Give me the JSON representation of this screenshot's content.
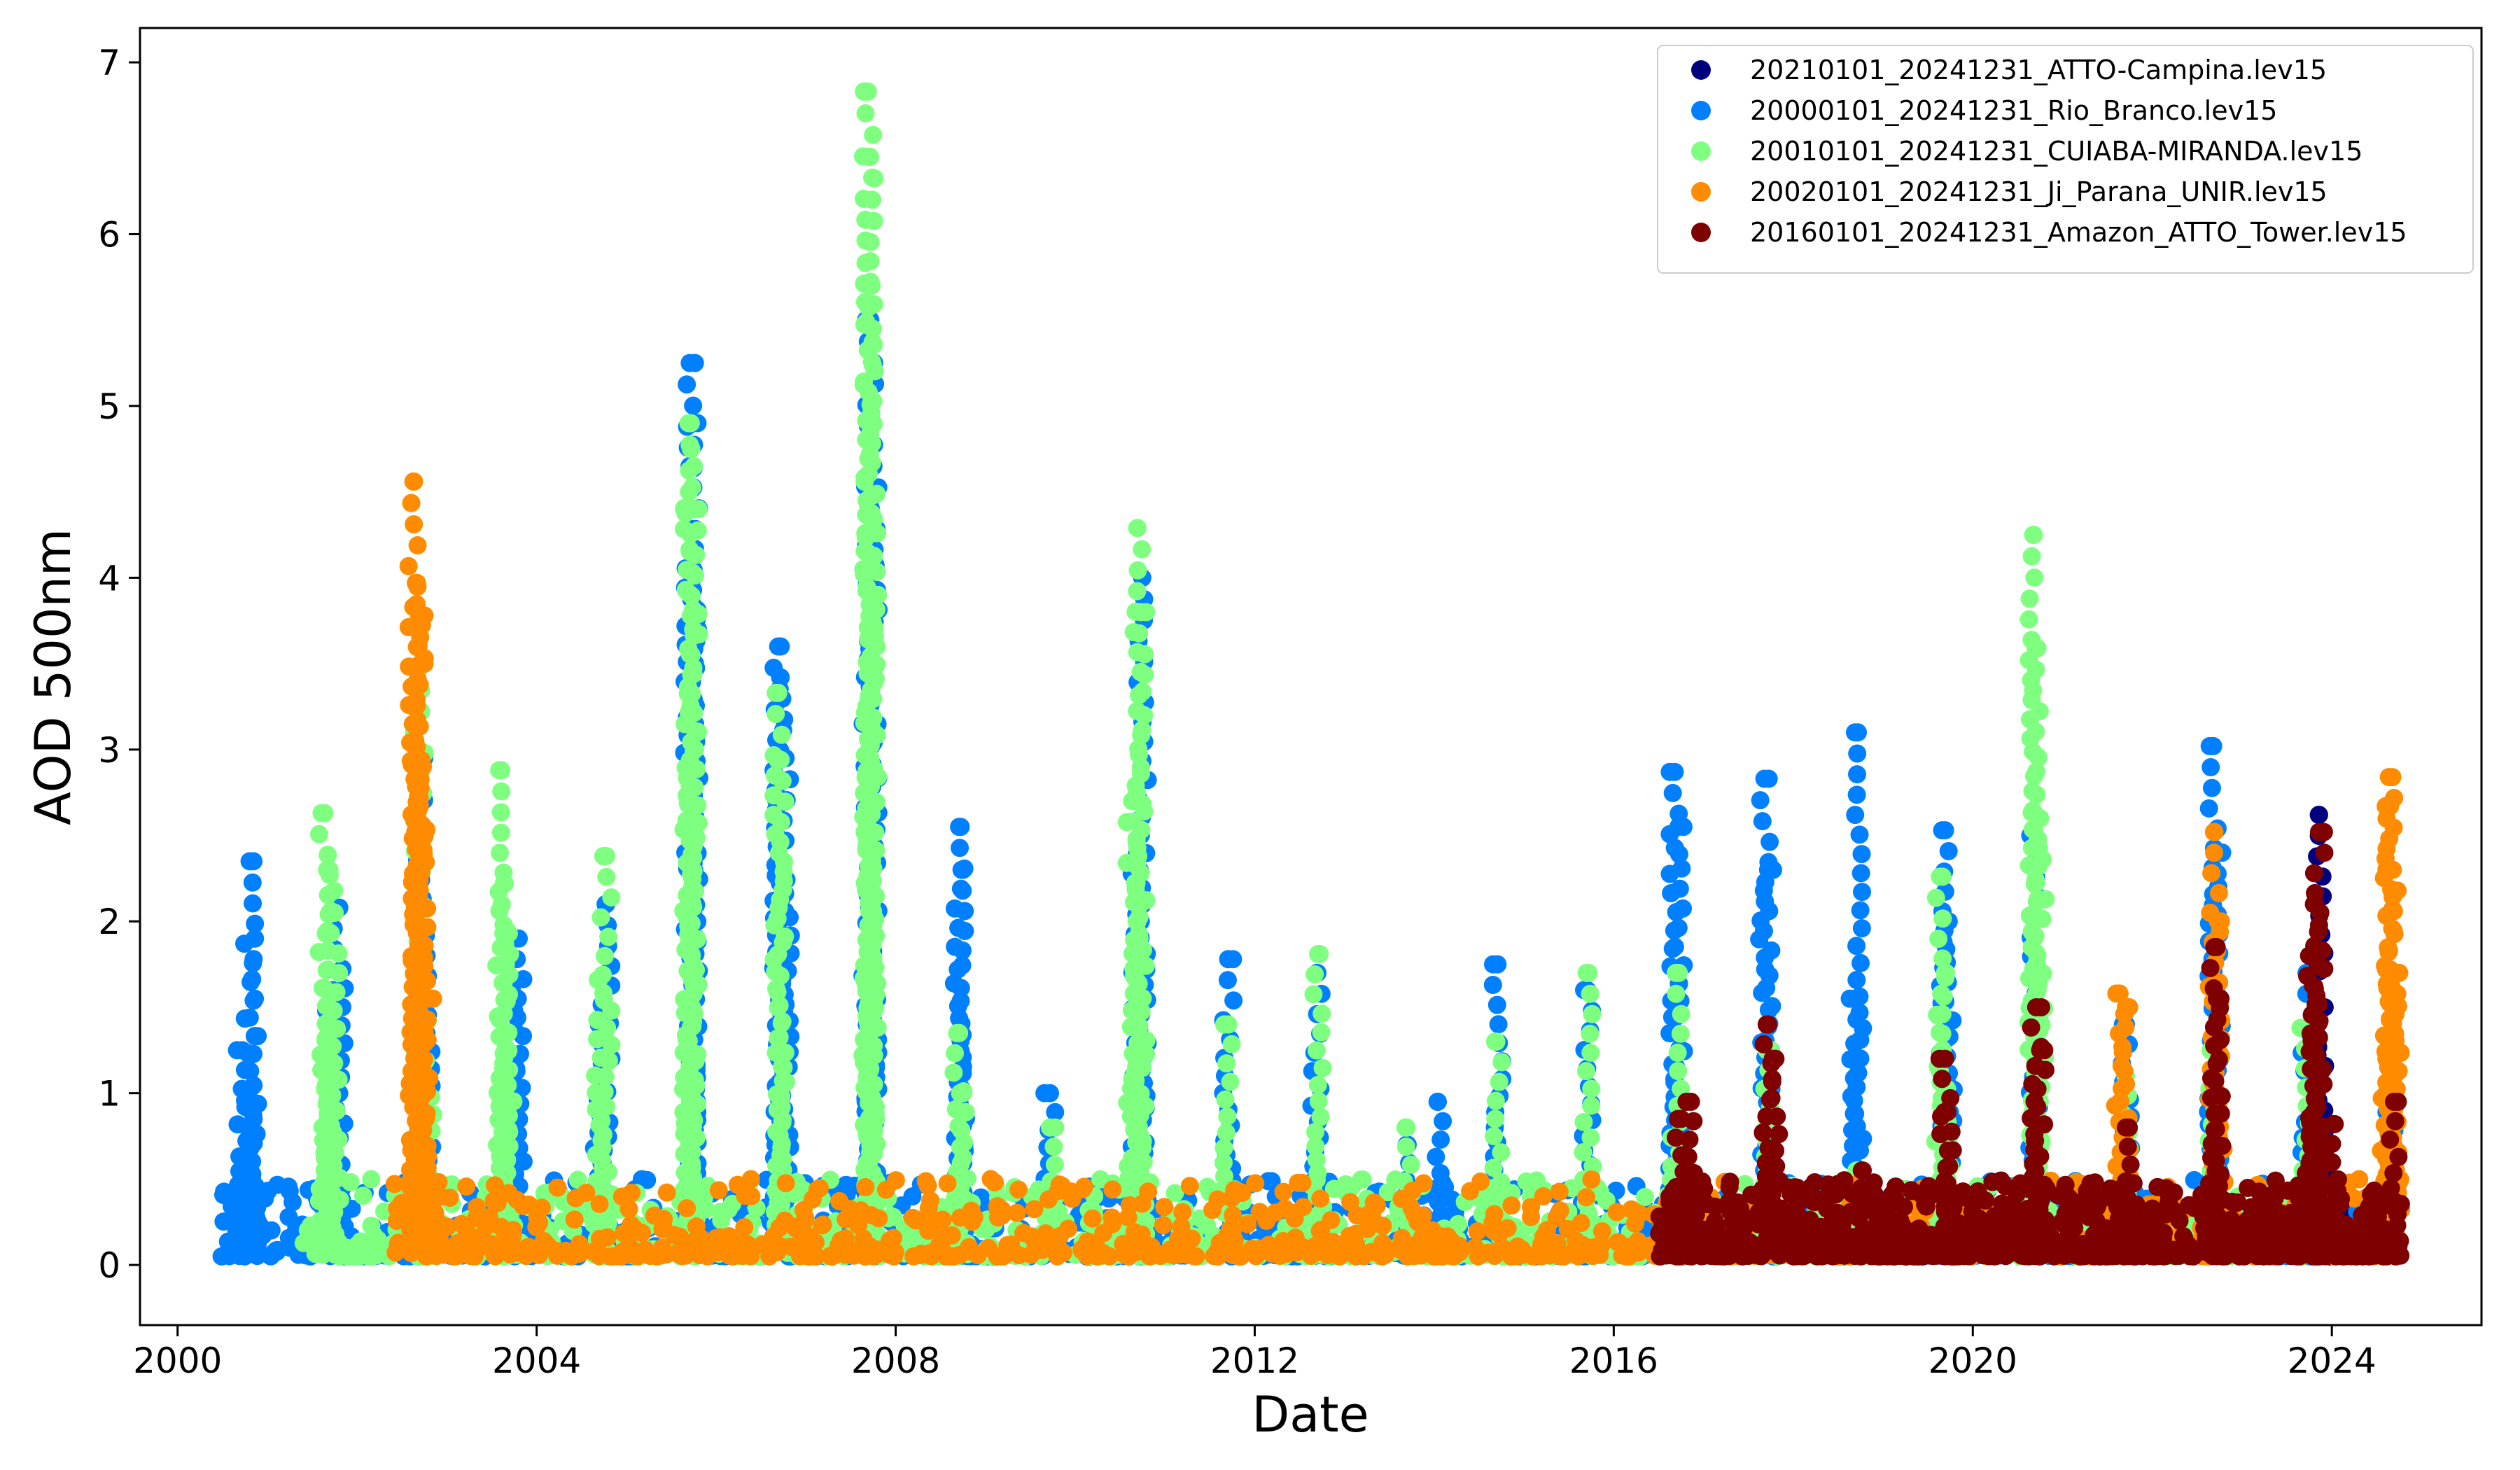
{
  "chart_data": {
    "type": "scatter",
    "title": "",
    "xlabel": "Date",
    "ylabel": "AOD 500nm",
    "xlim": [
      "1999-08-01",
      "2025-09-01"
    ],
    "ylim": [
      -0.35,
      7.2
    ],
    "x_ticks": [
      "2000",
      "2004",
      "2008",
      "2012",
      "2016",
      "2020",
      "2024"
    ],
    "y_ticks": [
      "0",
      "1",
      "2",
      "3",
      "4",
      "5",
      "6",
      "7"
    ],
    "grid": false,
    "legend_position": "top-right",
    "series": [
      {
        "name": "20210101_20241231_ATTO-Campina.lev15",
        "color": "#00007f",
        "points": [
          [
            "2023-11-10",
            2.62
          ],
          [
            "2023-11-15",
            1.5
          ],
          [
            "2023-10-20",
            1.2
          ],
          [
            "2023-12-01",
            0.9
          ],
          [
            "2024-02-10",
            0.3
          ]
        ]
      },
      {
        "name": "20000101_20241231_Rio_Branco.lev15",
        "color": "#0080ff",
        "points": [
          [
            "2000-09-20",
            1.25
          ],
          [
            "2000-10-20",
            2.35
          ],
          [
            "2000-11-10",
            1.9
          ],
          [
            "2001-09-15",
            1.6
          ],
          [
            "2001-10-20",
            2.08
          ],
          [
            "2002-09-15",
            2.95
          ],
          [
            "2002-10-10",
            1.8
          ],
          [
            "2003-09-20",
            1.6
          ],
          [
            "2003-10-20",
            1.9
          ],
          [
            "2004-09-10",
            1.4
          ],
          [
            "2004-10-10",
            2.1
          ],
          [
            "2005-09-15",
            5.25
          ],
          [
            "2005-10-01",
            4.9
          ],
          [
            "2005-09-25",
            4.0
          ],
          [
            "2006-09-10",
            3.6
          ],
          [
            "2006-09-20",
            3.42
          ],
          [
            "2006-10-10",
            2.95
          ],
          [
            "2007-09-10",
            3.15
          ],
          [
            "2007-09-20",
            5.5
          ],
          [
            "2007-10-01",
            4.9
          ],
          [
            "2008-09-15",
            2.55
          ],
          [
            "2008-09-25",
            2.3
          ],
          [
            "2009-09-20",
            1.0
          ],
          [
            "2010-09-10",
            2.4
          ],
          [
            "2010-09-30",
            4.0
          ],
          [
            "2011-09-15",
            1.78
          ],
          [
            "2012-09-10",
            1.7
          ],
          [
            "2013-09-10",
            0.7
          ],
          [
            "2014-01-15",
            0.95
          ],
          [
            "2014-09-15",
            1.75
          ],
          [
            "2015-09-15",
            1.6
          ],
          [
            "2016-09-05",
            2.87
          ],
          [
            "2016-09-20",
            2.55
          ],
          [
            "2017-09-05",
            2.83
          ],
          [
            "2017-09-20",
            2.3
          ],
          [
            "2018-09-10",
            1.55
          ],
          [
            "2018-09-20",
            3.1
          ],
          [
            "2019-09-10",
            2.53
          ],
          [
            "2019-09-25",
            2.0
          ],
          [
            "2020-09-10",
            2.5
          ],
          [
            "2021-09-15",
            1.4
          ],
          [
            "2022-09-05",
            3.02
          ],
          [
            "2022-09-20",
            2.4
          ],
          [
            "2023-09-20",
            1.7
          ],
          [
            "2024-09-01",
            1.0
          ]
        ]
      },
      {
        "name": "20010101_20241231_CUIABA-MIRANDA.lev15",
        "color": "#7fff7f",
        "points": [
          [
            "2001-08-20",
            2.63
          ],
          [
            "2001-09-10",
            2.3
          ],
          [
            "2001-10-01",
            2.05
          ],
          [
            "2002-09-10",
            3.47
          ],
          [
            "2002-10-15",
            1.42
          ],
          [
            "2003-08-10",
            2.88
          ],
          [
            "2003-08-20",
            2.22
          ],
          [
            "2003-09-10",
            1.93
          ],
          [
            "2004-09-10",
            1.66
          ],
          [
            "2004-10-10",
            2.38
          ],
          [
            "2005-09-10",
            4.9
          ],
          [
            "2005-09-20",
            4.75
          ],
          [
            "2005-10-01",
            4.4
          ],
          [
            "2006-09-10",
            3.33
          ],
          [
            "2006-09-20",
            2.94
          ],
          [
            "2007-09-10",
            6.83
          ],
          [
            "2007-09-15",
            6.45
          ],
          [
            "2007-09-25",
            5.7
          ],
          [
            "2007-10-01",
            3.9
          ],
          [
            "2008-09-15",
            1.35
          ],
          [
            "2008-10-01",
            1.0
          ],
          [
            "2009-09-20",
            0.8
          ],
          [
            "2010-08-20",
            2.7
          ],
          [
            "2010-09-10",
            4.29
          ],
          [
            "2010-09-25",
            3.8
          ],
          [
            "2011-09-15",
            1.4
          ],
          [
            "2012-09-15",
            1.81
          ],
          [
            "2013-09-10",
            0.8
          ],
          [
            "2014-09-10",
            1.3
          ],
          [
            "2015-09-20",
            1.7
          ],
          [
            "2016-09-10",
            1.7
          ],
          [
            "2017-09-15",
            1.25
          ],
          [
            "2018-09-15",
            0.55
          ],
          [
            "2019-08-20",
            2.26
          ],
          [
            "2019-09-10",
            1.7
          ],
          [
            "2020-09-05",
            4.25
          ],
          [
            "2020-09-20",
            3.59
          ],
          [
            "2020-10-01",
            2.6
          ],
          [
            "2021-09-15",
            1.1
          ],
          [
            "2022-09-10",
            1.25
          ],
          [
            "2023-09-10",
            1.38
          ]
        ]
      },
      {
        "name": "20020101_20241231_Ji_Parana_UNIR.lev15",
        "color": "#ff8c00",
        "points": [
          [
            "2002-08-20",
            4.56
          ],
          [
            "2002-09-01",
            3.97
          ],
          [
            "2002-09-10",
            3.78
          ],
          [
            "2002-09-15",
            3.5
          ],
          [
            "2002-09-25",
            2.9
          ],
          [
            "2002-10-15",
            1.55
          ],
          [
            "2021-08-20",
            1.58
          ],
          [
            "2021-09-15",
            1.5
          ],
          [
            "2022-09-10",
            2.52
          ],
          [
            "2022-09-25",
            2.0
          ],
          [
            "2024-08-20",
            2.84
          ],
          [
            "2024-08-25",
            2.67
          ],
          [
            "2024-09-05",
            2.3
          ],
          [
            "2024-08-10",
            1.2
          ],
          [
            "2024-09-15",
            1.7
          ]
        ]
      },
      {
        "name": "20160101_20241231_Amazon_ATTO_Tower.lev15",
        "color": "#7f0000",
        "points": [
          [
            "2016-10-01",
            0.85
          ],
          [
            "2016-11-10",
            0.95
          ],
          [
            "2017-09-20",
            1.4
          ],
          [
            "2017-10-20",
            1.2
          ],
          [
            "2018-10-10",
            0.55
          ],
          [
            "2019-09-10",
            1.2
          ],
          [
            "2019-09-20",
            0.89
          ],
          [
            "2020-09-15",
            1.5
          ],
          [
            "2020-10-01",
            1.25
          ],
          [
            "2021-09-15",
            0.8
          ],
          [
            "2022-09-10",
            1.85
          ],
          [
            "2022-09-20",
            1.55
          ],
          [
            "2023-10-10",
            1.8
          ],
          [
            "2023-10-25",
            2.1
          ],
          [
            "2023-11-10",
            2.52
          ],
          [
            "2024-01-10",
            0.82
          ],
          [
            "2024-09-10",
            0.95
          ]
        ]
      }
    ]
  }
}
